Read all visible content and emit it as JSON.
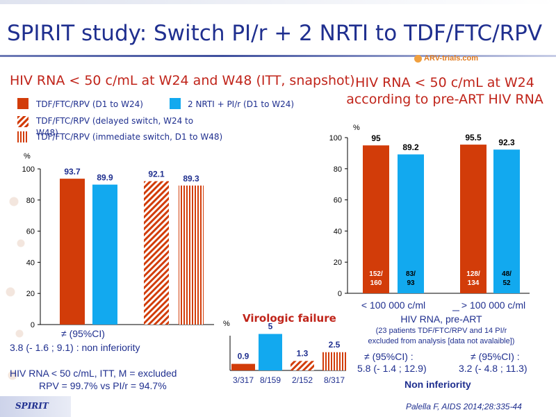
{
  "title": "SPIRIT study: Switch PI/r + 2 NRTI to TDF/FTC/RPV",
  "logo": "ARV-trials.com",
  "colors": {
    "red": "#d23c09",
    "blue": "#12a9ef",
    "title": "#1f2f8f",
    "accent": "#c0241a"
  },
  "left_chart": {
    "heading": "HIV RNA < 50 c/mL at W24 and W48 (ITT, snapshot)",
    "legend": {
      "red": "TDF/FTC/RPV (D1 to W24)",
      "blue": "2 NRTI + PI/r (D1 to W24)",
      "diag": "TDF/FTC/RPV (delayed switch, W24 to W48)",
      "vert": "TDF/FTC/RPV (immediate switch, D1 to W48)"
    },
    "ci_label": "≠ (95%CI)",
    "ci_value": "3.8 (- 1.6 ; 9.1) : non inferiority"
  },
  "right_chart": {
    "heading_line1": "HIV RNA < 50 c/mL at W24",
    "heading_line2": "according to pre-ART HIV RNA",
    "xlabel": "HIV RNA, pre-ART",
    "note_line1": "(23 patients TDF/FTC/RPV and 14 PI/r",
    "note_line2": "excluded from analysis [data not avalaible])",
    "ci_left_label": "≠ (95%CI) :",
    "ci_left_value": "5.8 (- 1.4 ; 12.9)",
    "ci_right_label": "≠ (95%CI) :",
    "ci_right_value": "3.2 (- 4.8 ; 11.3)",
    "conclusion": "Non inferiority"
  },
  "bottom_note_line1": "HIV RNA < 50 c/mL, ITT, M = excluded",
  "bottom_note_line2": "RPV = 99.7% vs PI/r = 94.7%",
  "vf_title": "Virologic failure",
  "footer": "SPIRIT",
  "citation": "Palella F, AIDS 2014;28:335-44",
  "chart_data": [
    {
      "type": "bar",
      "ylabel": "%",
      "ylim": [
        0,
        100
      ],
      "yticks": [
        0,
        20,
        40,
        60,
        80,
        100
      ],
      "bars": [
        {
          "value": 93.7,
          "label": "93.7",
          "pattern": "red"
        },
        {
          "value": 89.9,
          "label": "89.9",
          "pattern": "blue"
        },
        {
          "value": 92.1,
          "label": "92.1",
          "pattern": "diag"
        },
        {
          "value": 89.3,
          "label": "89.3",
          "pattern": "vert"
        }
      ]
    },
    {
      "type": "bar",
      "ylabel": "%",
      "ylim": [
        0,
        100
      ],
      "yticks": [
        0,
        20,
        40,
        60,
        80,
        100
      ],
      "categories": [
        "< 100 000 c/ml",
        "> 100 000 c/ml"
      ],
      "bars": [
        {
          "value": 95,
          "label": "95",
          "pattern": "red",
          "inner": [
            "152/",
            "160"
          ]
        },
        {
          "value": 89.2,
          "label": "89.2",
          "pattern": "blue",
          "inner": [
            "83/",
            "93"
          ]
        },
        {
          "value": 95.5,
          "label": "95.5",
          "pattern": "red",
          "inner": [
            "128/",
            "134"
          ]
        },
        {
          "value": 92.3,
          "label": "92.3",
          "pattern": "blue",
          "inner": [
            "48/",
            "52"
          ]
        }
      ]
    },
    {
      "type": "bar",
      "ylabel": "%",
      "ylim": [
        0,
        6
      ],
      "bars": [
        {
          "value": 0.9,
          "label": "0.9",
          "pattern": "red",
          "n": "3/317"
        },
        {
          "value": 5,
          "label": "5",
          "pattern": "blue",
          "n": "8/159"
        },
        {
          "value": 1.3,
          "label": "1.3",
          "pattern": "diag",
          "n": "2/152"
        },
        {
          "value": 2.5,
          "label": "2.5",
          "pattern": "vert",
          "n": "8/317"
        }
      ]
    }
  ]
}
